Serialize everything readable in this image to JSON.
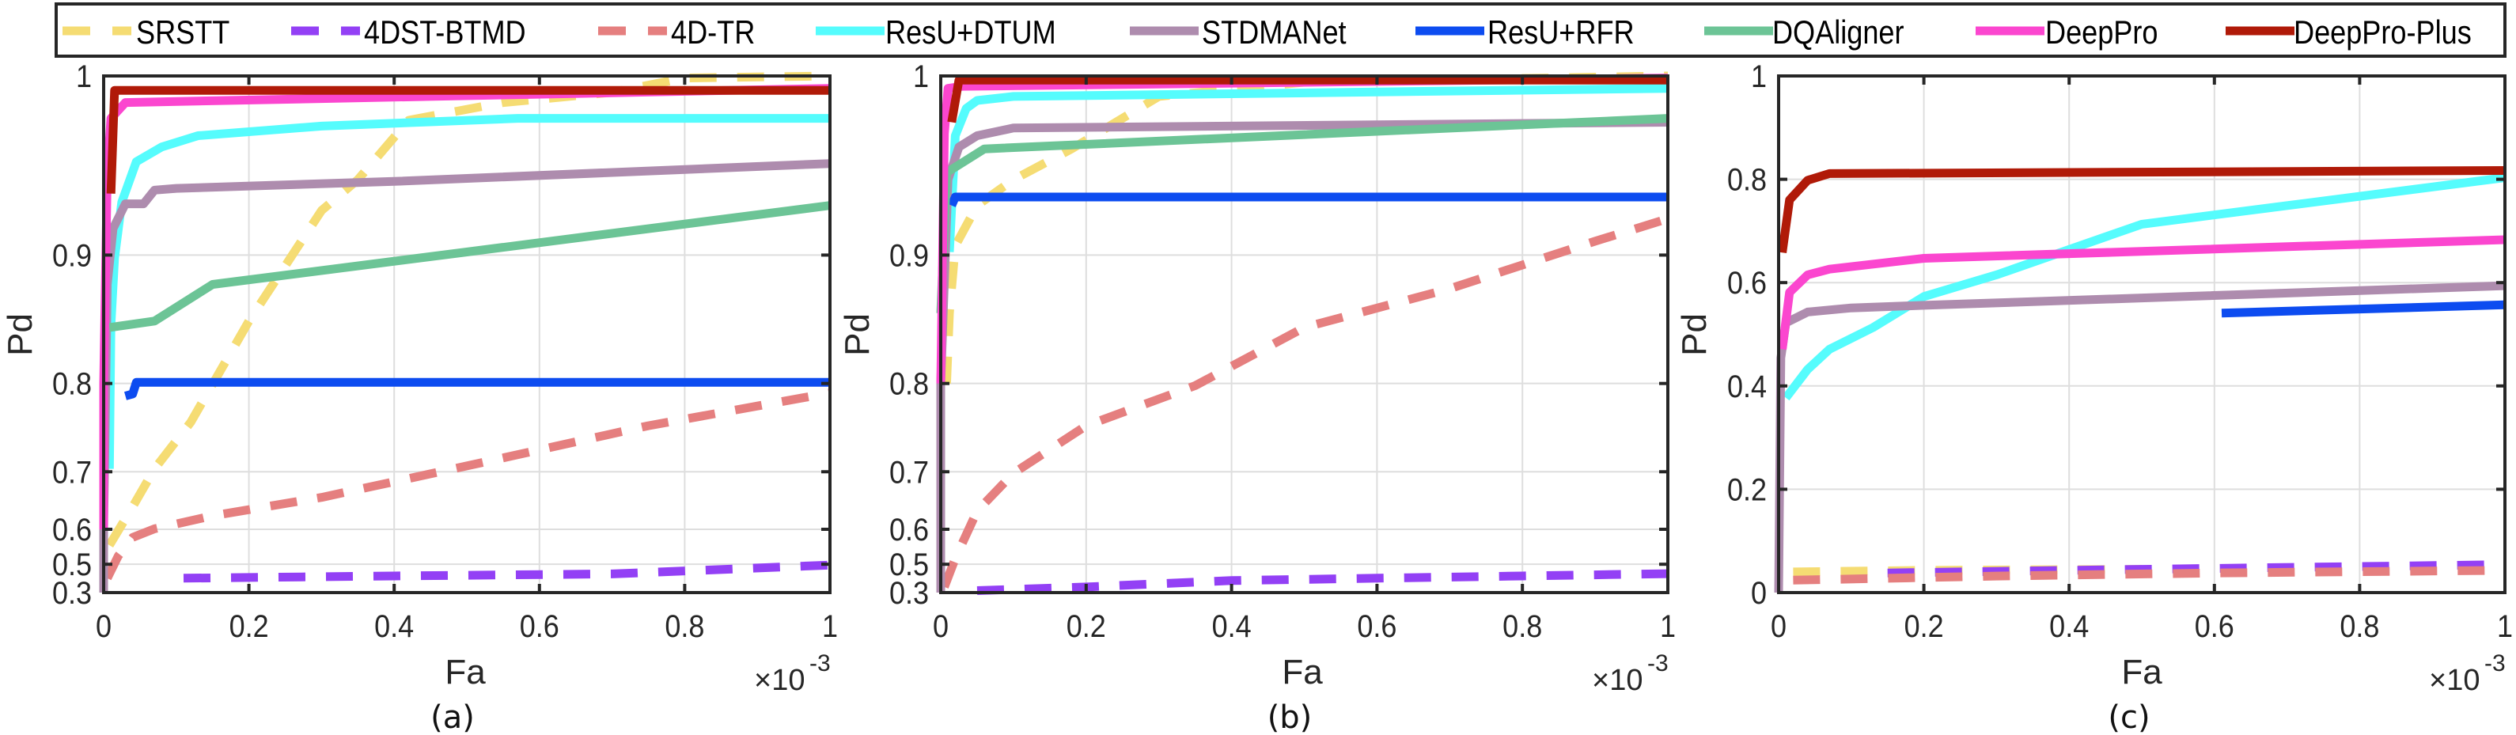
{
  "legend": {
    "position": "top",
    "entries": [
      {
        "name": "SRSTT",
        "color": "#F5DC73",
        "style": "dashed"
      },
      {
        "name": "4DST-BTMD",
        "color": "#9340F5",
        "style": "dashed"
      },
      {
        "name": "4D-TR",
        "color": "#E57F7F",
        "style": "dashed"
      },
      {
        "name": "ResU+DTUM",
        "color": "#55FCFD",
        "style": "solid"
      },
      {
        "name": "STDMANet",
        "color": "#AE8CAE",
        "style": "solid"
      },
      {
        "name": "ResU+RFR",
        "color": "#0D4CF0",
        "style": "solid"
      },
      {
        "name": "DQAligner",
        "color": "#6CC496",
        "style": "solid"
      },
      {
        "name": "DeepPro",
        "color": "#FB46CF",
        "style": "solid"
      },
      {
        "name": "DeepPro-Plus",
        "color": "#B01A08",
        "style": "solid"
      }
    ]
  },
  "chart_data": [
    {
      "type": "line",
      "panel_label": "(a)",
      "xlabel": "Fa",
      "ylabel": "Pd",
      "x_multiplier": "×10",
      "x_multiplier_exp": "-3",
      "xlim": [
        0,
        1
      ],
      "ylim": [
        0.3,
        1
      ],
      "yscale": "power4",
      "grid": true,
      "xticks": [
        "0",
        "0.2",
        "0.4",
        "0.6",
        "0.8",
        "1"
      ],
      "yticks": [
        "0.3",
        "0.5",
        "0.6",
        "0.7",
        "0.8",
        "0.9",
        "1"
      ],
      "series": [
        {
          "name": "SRSTT",
          "x": [
            0.008,
            0.04,
            0.07,
            0.12,
            0.2,
            0.3,
            0.35,
            0.42,
            0.55,
            0.7,
            0.8,
            1.0
          ],
          "y": [
            0.561,
            0.645,
            0.704,
            0.761,
            0.853,
            0.928,
            0.946,
            0.978,
            0.987,
            0.992,
            0.999,
            1.0
          ]
        },
        {
          "name": "4DST-BTMD",
          "x": [
            0.11,
            0.4,
            0.7,
            1.0
          ],
          "y": [
            0.435,
            0.447,
            0.458,
            0.497
          ]
        },
        {
          "name": "4D-TR",
          "x": [
            0.005,
            0.02,
            0.04,
            0.07,
            0.15,
            0.3,
            0.5,
            0.75,
            1.0
          ],
          "y": [
            0.435,
            0.529,
            0.581,
            0.601,
            0.628,
            0.661,
            0.708,
            0.757,
            0.791
          ]
        },
        {
          "name": "ResU+DTUM",
          "x": [
            0.008,
            0.01,
            0.015,
            0.025,
            0.045,
            0.08,
            0.13,
            0.3,
            0.57,
            1.0
          ],
          "y": [
            0.704,
            0.85,
            0.898,
            0.933,
            0.956,
            0.964,
            0.97,
            0.975,
            0.979,
            0.979
          ]
        },
        {
          "name": "STDMANet",
          "x": [
            0.0,
            0.0,
            0.005,
            0.013,
            0.03,
            0.055,
            0.07,
            0.1,
            0.4,
            1.0
          ],
          "y": [
            0.3,
            0.6,
            0.88,
            0.917,
            0.932,
            0.932,
            0.94,
            0.941,
            0.945,
            0.955
          ]
        },
        {
          "name": "ResU+RFR",
          "x": [
            0.03,
            0.04,
            0.045,
            1.0
          ],
          "y": [
            0.788,
            0.79,
            0.801,
            0.801
          ]
        },
        {
          "name": "DQAligner",
          "x": [
            0.008,
            0.07,
            0.15,
            0.5,
            1.0
          ],
          "y": [
            0.848,
            0.853,
            0.88,
            0.902,
            0.931
          ]
        },
        {
          "name": "DeepPro",
          "x": [
            0.0,
            0.0,
            0.005,
            0.01,
            0.03,
            1.0
          ],
          "y": [
            0.6,
            0.8,
            0.95,
            0.979,
            0.987,
            0.994
          ]
        },
        {
          "name": "DeepPro-Plus",
          "x": [
            0.01,
            0.015,
            1.0
          ],
          "y": [
            0.938,
            0.993,
            0.993
          ]
        }
      ]
    },
    {
      "type": "line",
      "panel_label": "(b)",
      "xlabel": "Fa",
      "ylabel": "Pd",
      "x_multiplier": "×10",
      "x_multiplier_exp": "-3",
      "xlim": [
        0,
        1
      ],
      "ylim": [
        0.3,
        1
      ],
      "yscale": "power4",
      "grid": true,
      "xticks": [
        "0",
        "0.2",
        "0.4",
        "0.6",
        "0.8",
        "1"
      ],
      "yticks": [
        "0.3",
        "0.5",
        "0.6",
        "0.7",
        "0.8",
        "0.9",
        "1"
      ],
      "series": [
        {
          "name": "SRSTT",
          "x": [
            0.008,
            0.012,
            0.02,
            0.05,
            0.1,
            0.18,
            0.3,
            0.5,
            1.0
          ],
          "y": [
            0.8,
            0.859,
            0.906,
            0.931,
            0.946,
            0.963,
            0.99,
            0.997,
            1.0
          ]
        },
        {
          "name": "4DST-BTMD",
          "x": [
            0.05,
            0.2,
            0.4,
            0.6,
            0.8,
            1.0
          ],
          "y": [
            0.33,
            0.371,
            0.42,
            0.435,
            0.447,
            0.459
          ]
        },
        {
          "name": "4D-TR",
          "x": [
            0.005,
            0.02,
            0.05,
            0.1,
            0.2,
            0.35,
            0.5,
            0.7,
            0.9,
            1.0
          ],
          "y": [
            0.371,
            0.521,
            0.637,
            0.698,
            0.757,
            0.798,
            0.848,
            0.877,
            0.909,
            0.923
          ]
        },
        {
          "name": "ResU+DTUM",
          "x": [
            0.012,
            0.02,
            0.035,
            0.05,
            0.1,
            1.0
          ],
          "y": [
            0.902,
            0.97,
            0.984,
            0.988,
            0.99,
            0.994
          ]
        },
        {
          "name": "STDMANet",
          "x": [
            0.0,
            0.0,
            0.01,
            0.025,
            0.05,
            0.1,
            1.0
          ],
          "y": [
            0.3,
            0.8,
            0.946,
            0.964,
            0.97,
            0.974,
            0.977
          ]
        },
        {
          "name": "ResU+RFR",
          "x": [
            0.015,
            0.02,
            1.0
          ],
          "y": [
            0.931,
            0.936,
            0.936
          ]
        },
        {
          "name": "DQAligner",
          "x": [
            0.0,
            0.008,
            0.06,
            1.0
          ],
          "y": [
            0.859,
            0.95,
            0.963,
            0.979
          ]
        },
        {
          "name": "DeepPro",
          "x": [
            0.0,
            0.005,
            0.01,
            0.03,
            1.0
          ],
          "y": [
            0.8,
            0.971,
            0.994,
            0.995,
            0.999
          ]
        },
        {
          "name": "DeepPro-Plus",
          "x": [
            0.015,
            0.025,
            1.0
          ],
          "y": [
            0.977,
            0.998,
            0.998
          ]
        }
      ]
    },
    {
      "type": "line",
      "panel_label": "(c)",
      "xlabel": "Fa",
      "ylabel": "Pd",
      "x_multiplier": "×10",
      "x_multiplier_exp": "-3",
      "xlim": [
        0,
        1
      ],
      "ylim": [
        0,
        1
      ],
      "yscale": "linear",
      "grid": true,
      "xticks": [
        "0",
        "0.2",
        "0.4",
        "0.6",
        "0.8",
        "1"
      ],
      "yticks": [
        "0",
        "0.2",
        "0.4",
        "0.6",
        "0.8",
        "1"
      ],
      "series": [
        {
          "name": "SRSTT",
          "x": [
            0.02,
            0.2,
            0.5
          ],
          "y": [
            0.04,
            0.043,
            0.045
          ]
        },
        {
          "name": "4DST-BTMD",
          "x": [
            0.15,
            0.5,
            1.0
          ],
          "y": [
            0.038,
            0.045,
            0.054
          ]
        },
        {
          "name": "4D-TR",
          "x": [
            0.02,
            0.3,
            0.6,
            1.0
          ],
          "y": [
            0.024,
            0.032,
            0.038,
            0.043
          ]
        },
        {
          "name": "ResU+DTUM",
          "x": [
            0.01,
            0.04,
            0.07,
            0.13,
            0.2,
            0.3,
            0.5,
            1.0
          ],
          "y": [
            0.377,
            0.432,
            0.471,
            0.513,
            0.573,
            0.615,
            0.713,
            0.803
          ]
        },
        {
          "name": "STDMANet",
          "x": [
            0.0,
            0.003,
            0.01,
            0.04,
            0.1,
            0.2,
            1.0
          ],
          "y": [
            0.0,
            0.454,
            0.522,
            0.543,
            0.551,
            0.556,
            0.594
          ]
        },
        {
          "name": "ResU+RFR",
          "x": [
            0.61,
            1.0
          ],
          "y": [
            0.541,
            0.557
          ]
        },
        {
          "name": "DeepPro",
          "x": [
            0.005,
            0.015,
            0.04,
            0.07,
            0.2,
            1.0
          ],
          "y": [
            0.471,
            0.581,
            0.615,
            0.626,
            0.647,
            0.683
          ]
        },
        {
          "name": "DeepPro-Plus",
          "x": [
            0.005,
            0.015,
            0.04,
            0.07,
            1.0
          ],
          "y": [
            0.658,
            0.76,
            0.798,
            0.811,
            0.817
          ]
        }
      ]
    }
  ]
}
